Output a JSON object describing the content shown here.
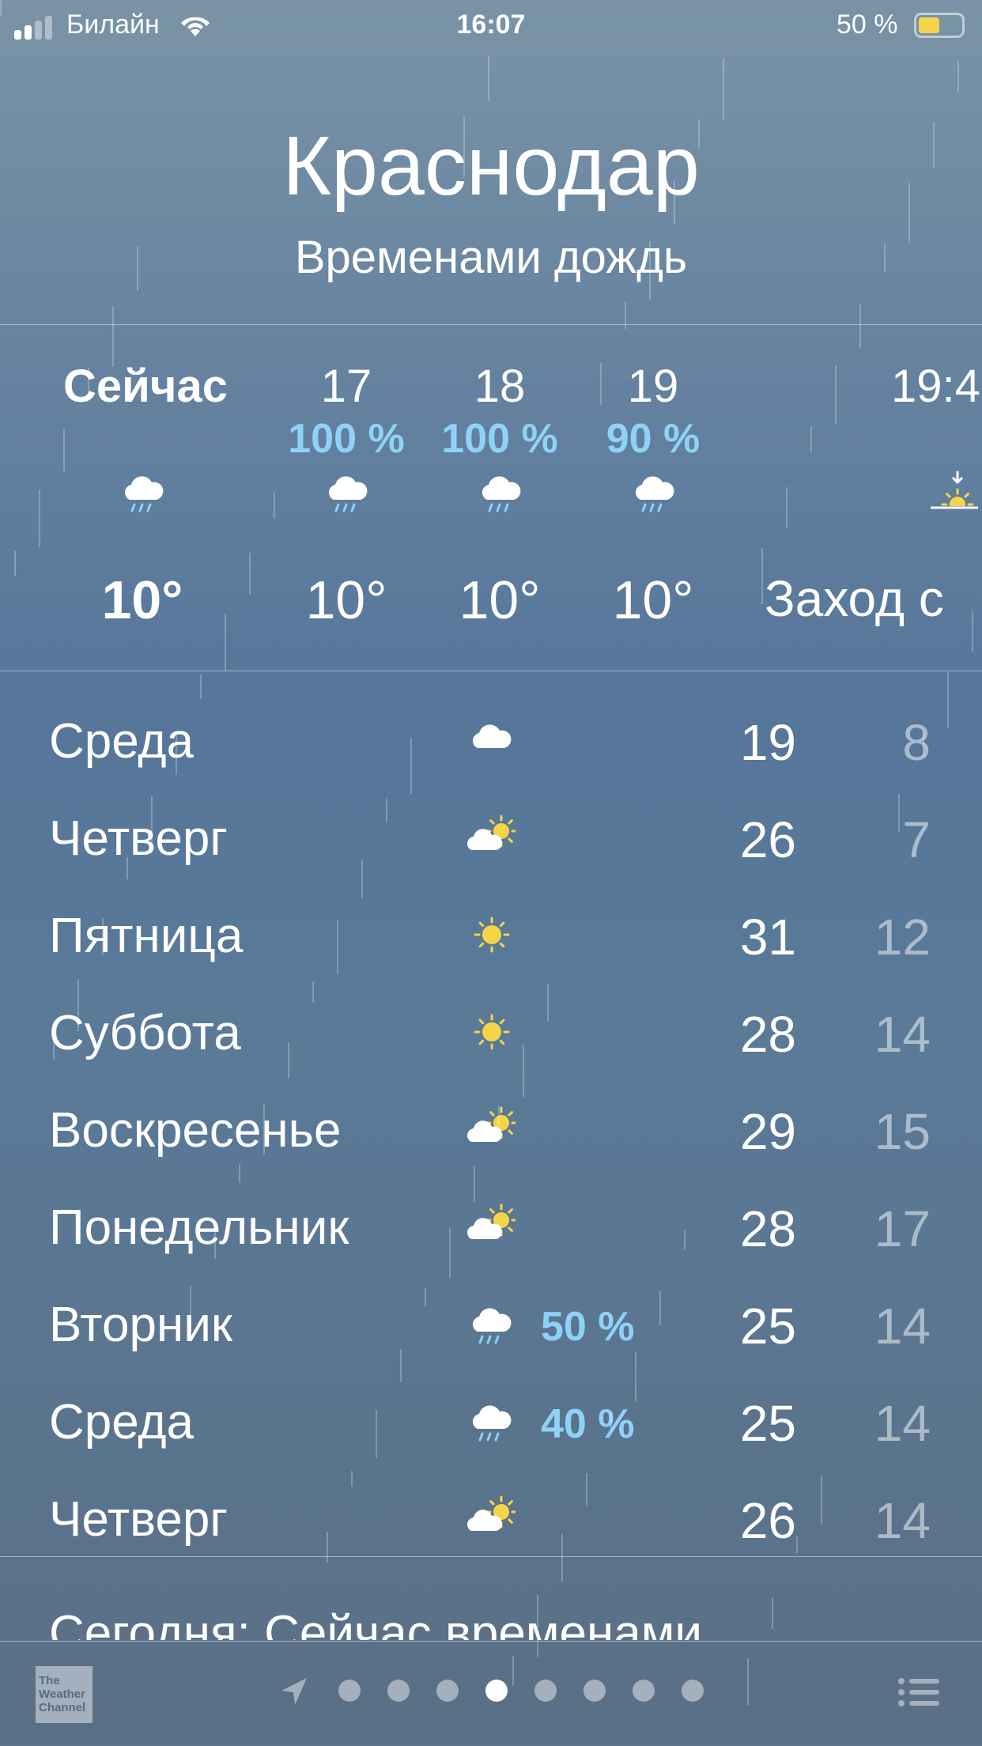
{
  "status_bar": {
    "carrier": "Билайн",
    "time": "16:07",
    "battery": "50 %",
    "battery_level": 50,
    "battery_color": "#f5d547"
  },
  "header": {
    "city": "Краснодар",
    "condition": "Временами дождь"
  },
  "hourly": [
    {
      "label": "Сейчас",
      "pct": "",
      "icon": "rain-cloud-icon",
      "temp": "10°",
      "bold": true
    },
    {
      "label": "17",
      "pct": "100 %",
      "icon": "rain-cloud-icon",
      "temp": "10°"
    },
    {
      "label": "18",
      "pct": "100 %",
      "icon": "rain-cloud-icon",
      "temp": "10°"
    },
    {
      "label": "19",
      "pct": "90 %",
      "icon": "rain-cloud-icon",
      "temp": "10°"
    },
    {
      "label": "19:4",
      "pct": "",
      "icon": "sunset-icon",
      "temp": "Заход с"
    }
  ],
  "daily": [
    {
      "day": "Среда",
      "icon": "cloud",
      "pct": "",
      "hi": "19",
      "lo": "8"
    },
    {
      "day": "Четверг",
      "icon": "partly",
      "pct": "",
      "hi": "26",
      "lo": "7"
    },
    {
      "day": "Пятница",
      "icon": "sun",
      "pct": "",
      "hi": "31",
      "lo": "12"
    },
    {
      "day": "Суббота",
      "icon": "sun",
      "pct": "",
      "hi": "28",
      "lo": "14"
    },
    {
      "day": "Воскресенье",
      "icon": "partly",
      "pct": "",
      "hi": "29",
      "lo": "15"
    },
    {
      "day": "Понедельник",
      "icon": "partly",
      "pct": "",
      "hi": "28",
      "lo": "17"
    },
    {
      "day": "Вторник",
      "icon": "rain",
      "pct": "50 %",
      "hi": "25",
      "lo": "14"
    },
    {
      "day": "Среда",
      "icon": "rain",
      "pct": "40 %",
      "hi": "25",
      "lo": "14"
    },
    {
      "day": "Четверг",
      "icon": "partly",
      "pct": "",
      "hi": "26",
      "lo": "14"
    }
  ],
  "summary": "Сегодня: Сейчас временами",
  "footer": {
    "logo": "The Weather Channel",
    "pages": 8,
    "active_page": 4
  },
  "colors": {
    "precip": "#8fd2f7",
    "sun": "#f5d547"
  }
}
